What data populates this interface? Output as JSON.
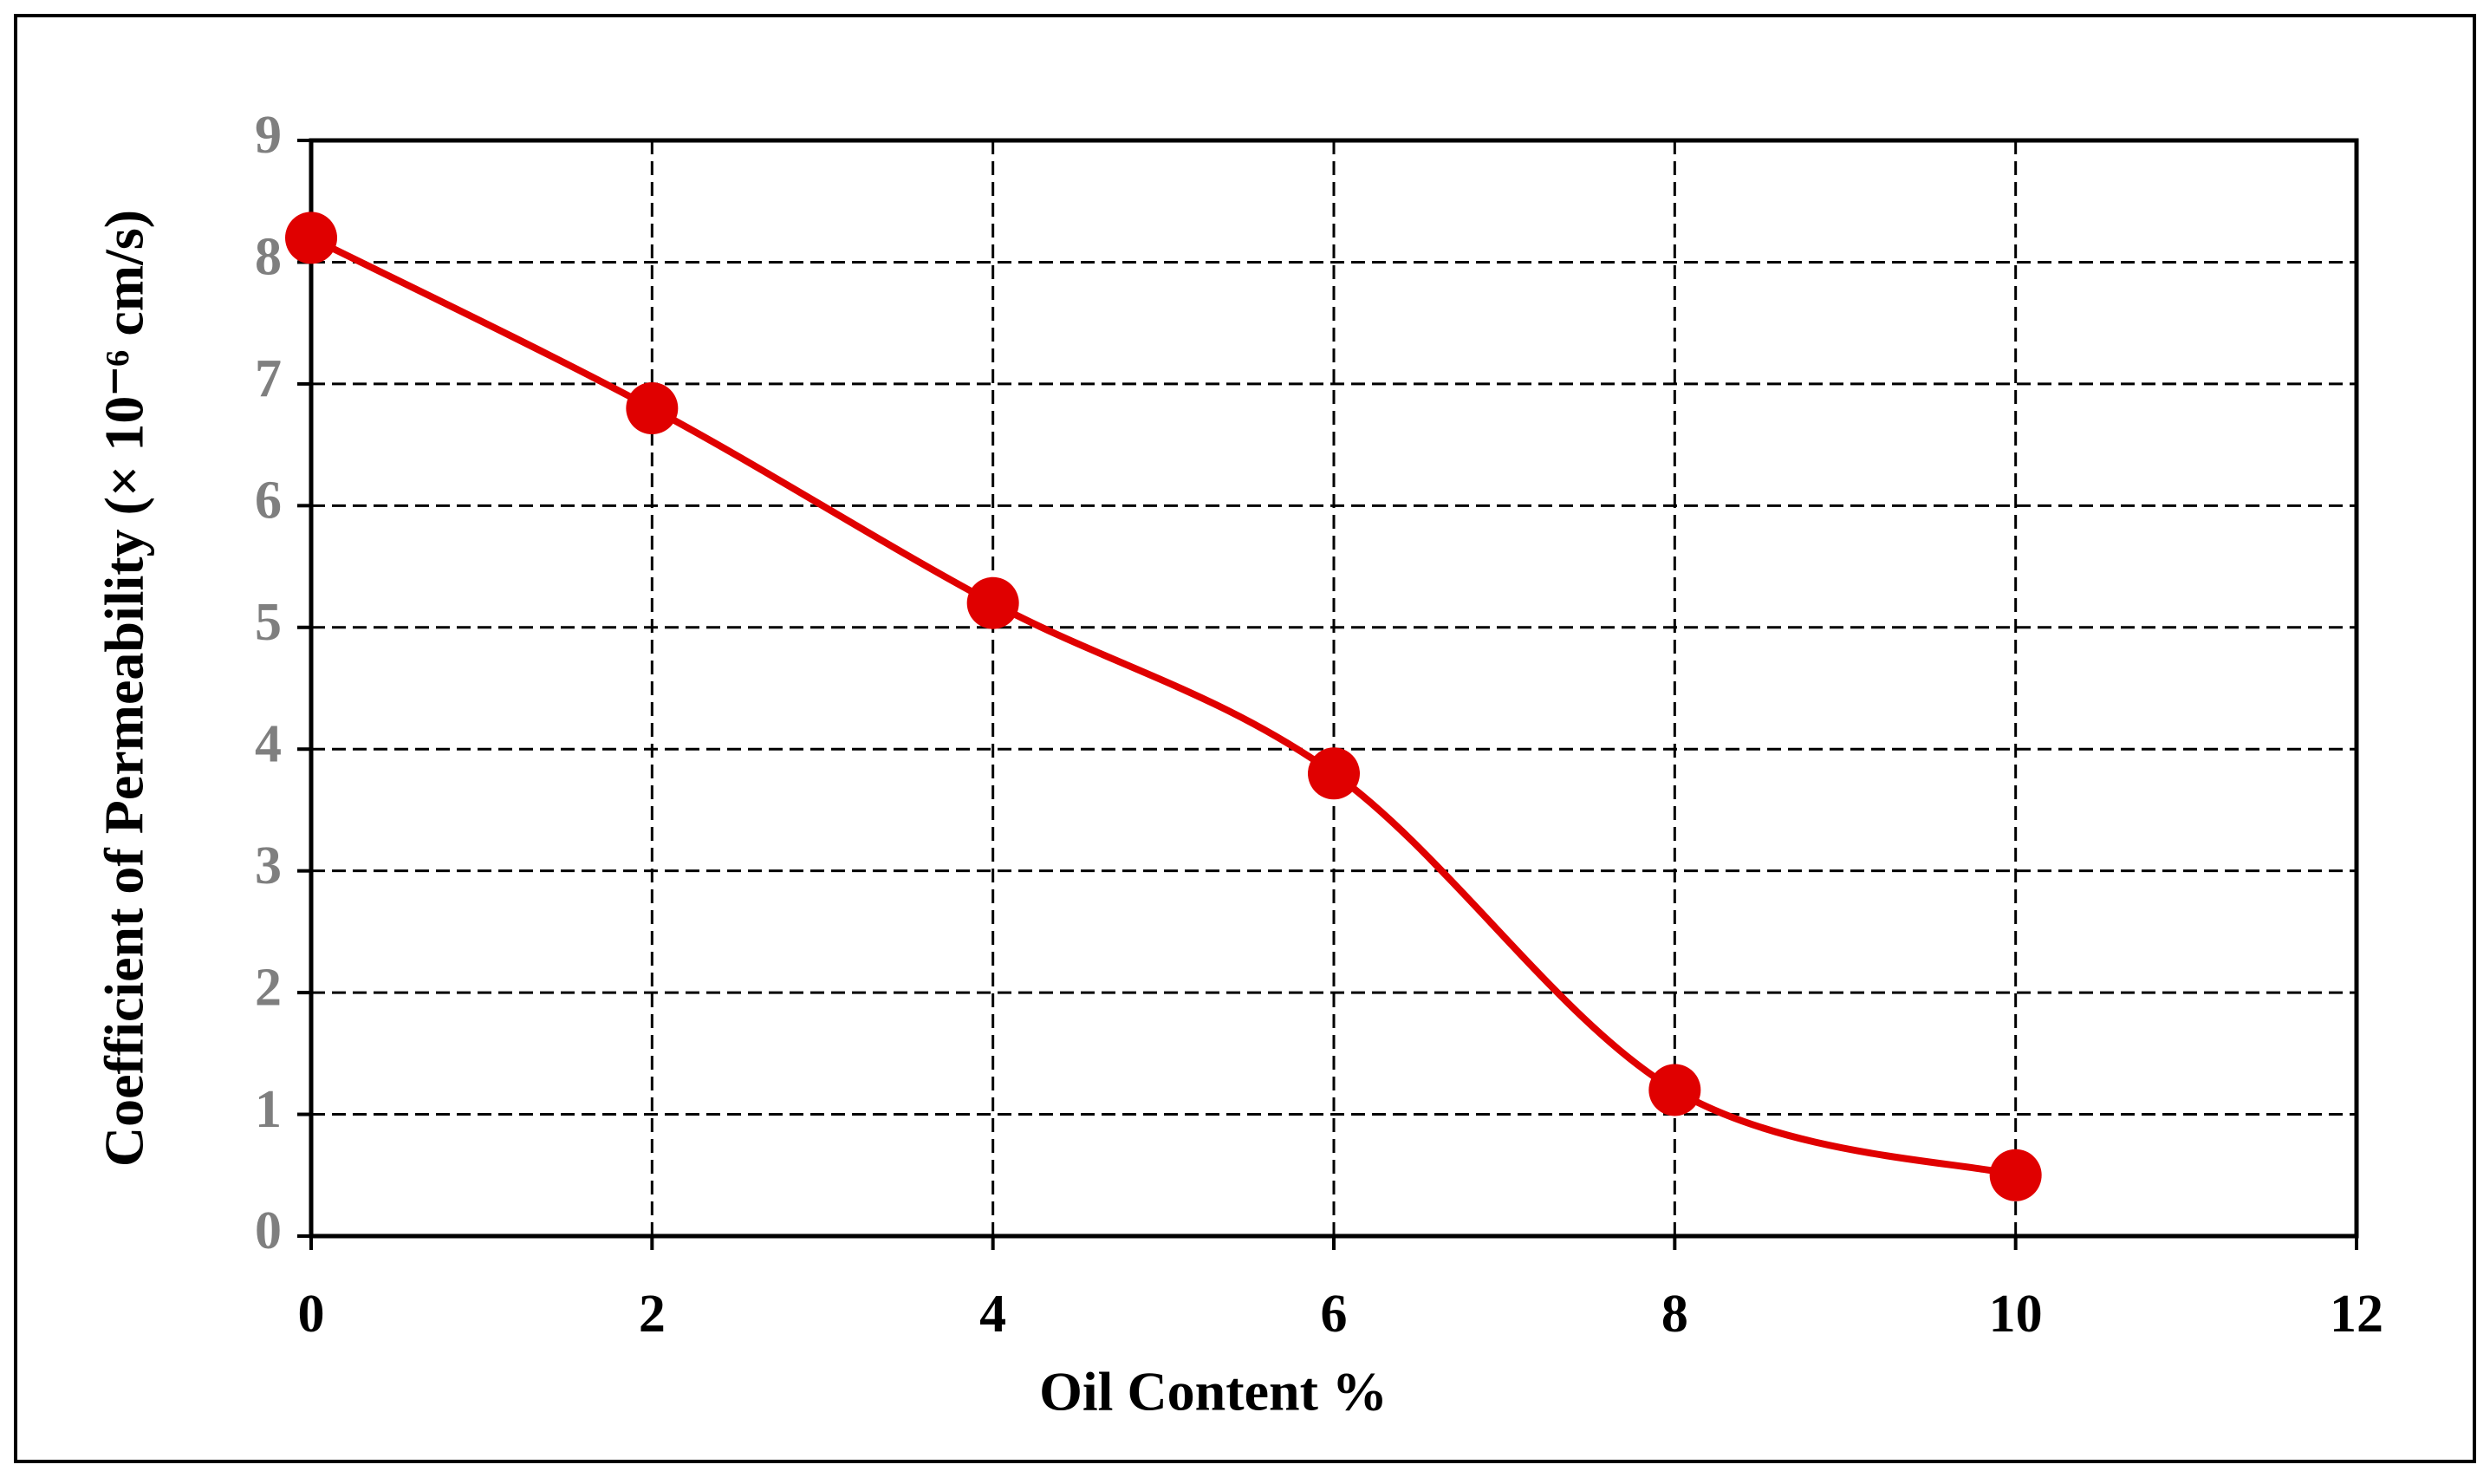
{
  "chart_data": {
    "type": "line",
    "x_label": "Oil Content %",
    "y_label": "Coefficient of Permeability (× 10⁻⁶ cm/s)",
    "x": [
      0,
      2,
      4,
      6,
      8,
      10
    ],
    "series": [
      {
        "color": "#e00000",
        "values": [
          8.2,
          6.8,
          5.2,
          3.8,
          1.2,
          0.5
        ]
      }
    ],
    "xlim": [
      0,
      12
    ],
    "xticks": [
      0,
      2,
      4,
      6,
      8,
      10,
      12
    ],
    "ylim": [
      0,
      9
    ],
    "yticks": [
      0,
      1,
      2,
      3,
      4,
      5,
      6,
      7,
      8,
      9
    ],
    "grid": true,
    "smooth": true
  }
}
